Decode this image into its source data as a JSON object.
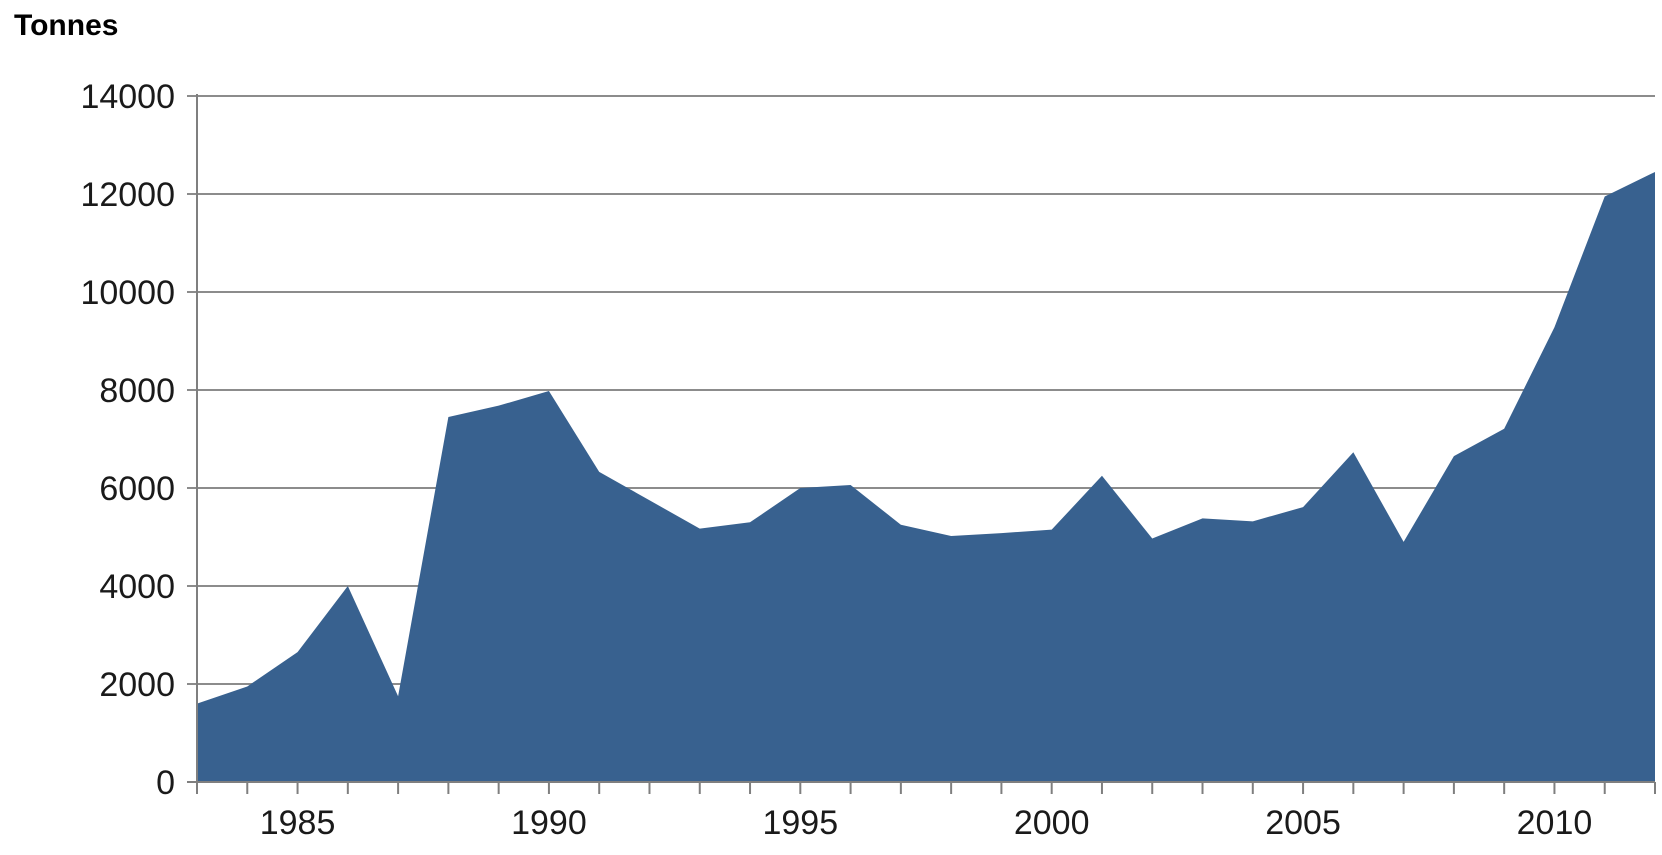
{
  "chart_data": {
    "type": "area",
    "ylabel": "Tonnes",
    "xlabel": "",
    "x": [
      1983,
      1984,
      1985,
      1986,
      1987,
      1988,
      1989,
      1990,
      1991,
      1992,
      1993,
      1994,
      1995,
      1996,
      1997,
      1998,
      1999,
      2000,
      2001,
      2002,
      2003,
      2004,
      2005,
      2006,
      2007,
      2008,
      2009,
      2010,
      2011,
      2012
    ],
    "series": [
      {
        "values": [
          1600,
          1950,
          2650,
          4000,
          1750,
          7450,
          7680,
          7980,
          6330,
          5750,
          5170,
          5300,
          6000,
          6060,
          5250,
          5020,
          5080,
          5150,
          6250,
          4970,
          5380,
          5320,
          5610,
          6730,
          4900,
          6650,
          7210,
          9280,
          11950,
          12450
        ]
      }
    ],
    "xlim": [
      1983,
      2012
    ],
    "ylim": [
      0,
      14000
    ],
    "x_ticks": [
      "1985",
      "1990",
      "1995",
      "2000",
      "2005",
      "2010"
    ],
    "y_ticks": [
      "0",
      "2000",
      "4000",
      "6000",
      "8000",
      "10000",
      "12000",
      "14000"
    ],
    "grid": true,
    "legend": "none",
    "colors": {
      "area": "#38618f",
      "gridline": "#8c8c8c",
      "axis": "#7f7f7f",
      "text": "#1a1a1a"
    }
  }
}
